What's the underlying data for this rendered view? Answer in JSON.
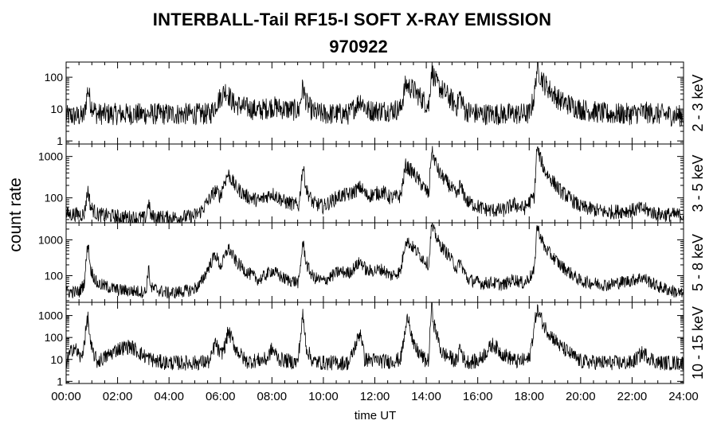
{
  "figure": {
    "title": "INTERBALL-Tail RF15-I SOFT X-RAY EMISSION",
    "subtitle": "970922",
    "ylabel": "count rate",
    "xlabel": "time UT"
  },
  "chart_data": {
    "type": "line",
    "title": "INTERBALL-Tail RF15-I SOFT X-RAY EMISSION",
    "subtitle": "970922",
    "xlabel": "time UT",
    "ylabel": "count rate",
    "x_unit": "hours UT",
    "xlim": [
      0,
      24
    ],
    "x_ticks": [
      "00:00",
      "02:00",
      "04:00",
      "06:00",
      "08:00",
      "10:00",
      "12:00",
      "14:00",
      "16:00",
      "18:00",
      "20:00",
      "22:00",
      "24:00"
    ],
    "y_scale": "log",
    "grid": false,
    "legend": "none",
    "line_color": "#000000",
    "panels": [
      {
        "band": "2 - 3 keV",
        "ylim": [
          0.8,
          300
        ],
        "y_ticks": [
          1,
          10,
          100
        ],
        "y_tick_labels": [
          "1",
          "10",
          "100"
        ],
        "x": [
          0,
          0.7,
          0.85,
          0.95,
          1.2,
          2,
          3,
          4,
          5,
          5.6,
          5.9,
          6.2,
          6.5,
          7,
          7.5,
          8,
          8.5,
          9.05,
          9.2,
          9.35,
          9.6,
          10,
          11,
          11.45,
          11.7,
          12.5,
          13,
          13.2,
          13.5,
          14,
          14.1,
          14.2,
          14.4,
          14.8,
          15.2,
          15.3,
          15.5,
          16,
          17,
          18,
          18.2,
          18.3,
          18.6,
          19.2,
          20,
          21,
          22,
          22.4,
          23,
          24
        ],
        "values": [
          6,
          6,
          45,
          15,
          7,
          7,
          7,
          7,
          7,
          7,
          18,
          40,
          15,
          11,
          9,
          12,
          10,
          9,
          50,
          15,
          8,
          7,
          7,
          20,
          9,
          9,
          10,
          60,
          40,
          15,
          12,
          180,
          60,
          28,
          12,
          30,
          9,
          7,
          7,
          7,
          25,
          190,
          60,
          18,
          10,
          7,
          7,
          8,
          7,
          6
        ]
      },
      {
        "band": "3 - 5 keV",
        "ylim": [
          25,
          2000
        ],
        "y_ticks": [
          100,
          1000
        ],
        "y_tick_labels": [
          "100",
          "1000"
        ],
        "x": [
          0,
          0.7,
          0.85,
          0.95,
          1.2,
          2,
          3.1,
          3.2,
          3.3,
          4,
          4.9,
          5.2,
          5.5,
          5.8,
          6.0,
          6.1,
          6.3,
          6.6,
          7,
          7.5,
          8,
          8.5,
          9.05,
          9.2,
          9.35,
          9.6,
          10,
          10.6,
          11,
          11.45,
          11.7,
          12.3,
          12.6,
          13,
          13.2,
          13.5,
          14.1,
          14.2,
          14.5,
          14.9,
          15.2,
          15.3,
          15.6,
          16.2,
          16.5,
          17,
          17.4,
          17.8,
          18.2,
          18.3,
          18.6,
          19.2,
          20,
          21,
          22,
          22.4,
          23,
          24
        ],
        "values": [
          40,
          40,
          160,
          60,
          40,
          35,
          32,
          80,
          35,
          33,
          35,
          45,
          80,
          150,
          110,
          200,
          380,
          180,
          110,
          85,
          130,
          80,
          65,
          600,
          150,
          75,
          62,
          110,
          120,
          180,
          110,
          140,
          100,
          110,
          600,
          400,
          120,
          1400,
          400,
          200,
          110,
          200,
          80,
          55,
          50,
          50,
          70,
          55,
          110,
          1600,
          450,
          150,
          60,
          45,
          50,
          55,
          40,
          38
        ]
      },
      {
        "band": "5 - 8 keV",
        "ylim": [
          18,
          3000
        ],
        "y_ticks": [
          100,
          1000
        ],
        "y_tick_labels": [
          "100",
          "1000"
        ],
        "x": [
          0,
          0.5,
          0.7,
          0.85,
          0.95,
          1.2,
          2,
          3.1,
          3.2,
          3.3,
          4,
          4.9,
          5.2,
          5.5,
          5.8,
          6.0,
          6.1,
          6.3,
          6.6,
          7,
          7.5,
          8,
          8.5,
          9.05,
          9.2,
          9.35,
          9.6,
          10,
          10.6,
          11,
          11.45,
          11.7,
          12.3,
          12.6,
          13,
          13.2,
          13.5,
          14.1,
          14.2,
          14.5,
          14.9,
          15.2,
          15.3,
          15.6,
          16.2,
          16.5,
          17,
          17.4,
          17.8,
          18.2,
          18.3,
          18.6,
          19.2,
          20,
          21,
          22,
          22.4,
          23,
          24
        ],
        "values": [
          35,
          35,
          60,
          900,
          150,
          60,
          40,
          35,
          160,
          45,
          32,
          40,
          55,
          150,
          400,
          180,
          250,
          600,
          250,
          130,
          75,
          140,
          80,
          65,
          900,
          200,
          90,
          70,
          130,
          120,
          250,
          130,
          150,
          100,
          130,
          1000,
          600,
          200,
          2500,
          800,
          350,
          150,
          250,
          80,
          60,
          65,
          55,
          80,
          60,
          130,
          2500,
          600,
          200,
          70,
          55,
          75,
          90,
          50,
          30
        ]
      },
      {
        "band": "10 - 15 keV",
        "ylim": [
          0.8,
          4000
        ],
        "y_ticks": [
          1,
          10,
          100,
          1000
        ],
        "y_tick_labels": [
          "1",
          "10",
          "100",
          "1000"
        ],
        "x": [
          0,
          0.3,
          0.6,
          0.85,
          0.95,
          1.2,
          1.5,
          2,
          2.5,
          3,
          3.5,
          4,
          5,
          5.6,
          5.8,
          6.0,
          6.2,
          6.3,
          6.6,
          7,
          7.8,
          8.0,
          8.3,
          9.0,
          9.2,
          9.35,
          9.6,
          10,
          11,
          11.45,
          11.6,
          12.5,
          13,
          13.3,
          13.5,
          14,
          14.1,
          14.2,
          14.3,
          14.6,
          15.2,
          15.3,
          15.5,
          16,
          16.6,
          16.9,
          17.5,
          18,
          18.2,
          18.3,
          18.6,
          19.2,
          20,
          21,
          22,
          22.4,
          23,
          24
        ],
        "values": [
          8,
          40,
          10,
          900,
          40,
          8,
          12,
          30,
          40,
          15,
          8,
          7,
          7,
          8,
          60,
          15,
          50,
          200,
          30,
          8,
          10,
          30,
          10,
          7,
          1000,
          30,
          8,
          7,
          7,
          200,
          10,
          8,
          10,
          1200,
          40,
          8,
          10,
          3000,
          400,
          20,
          8,
          40,
          8,
          8,
          50,
          20,
          8,
          10,
          300,
          2000,
          300,
          40,
          8,
          7,
          7,
          20,
          7,
          7
        ]
      }
    ]
  }
}
